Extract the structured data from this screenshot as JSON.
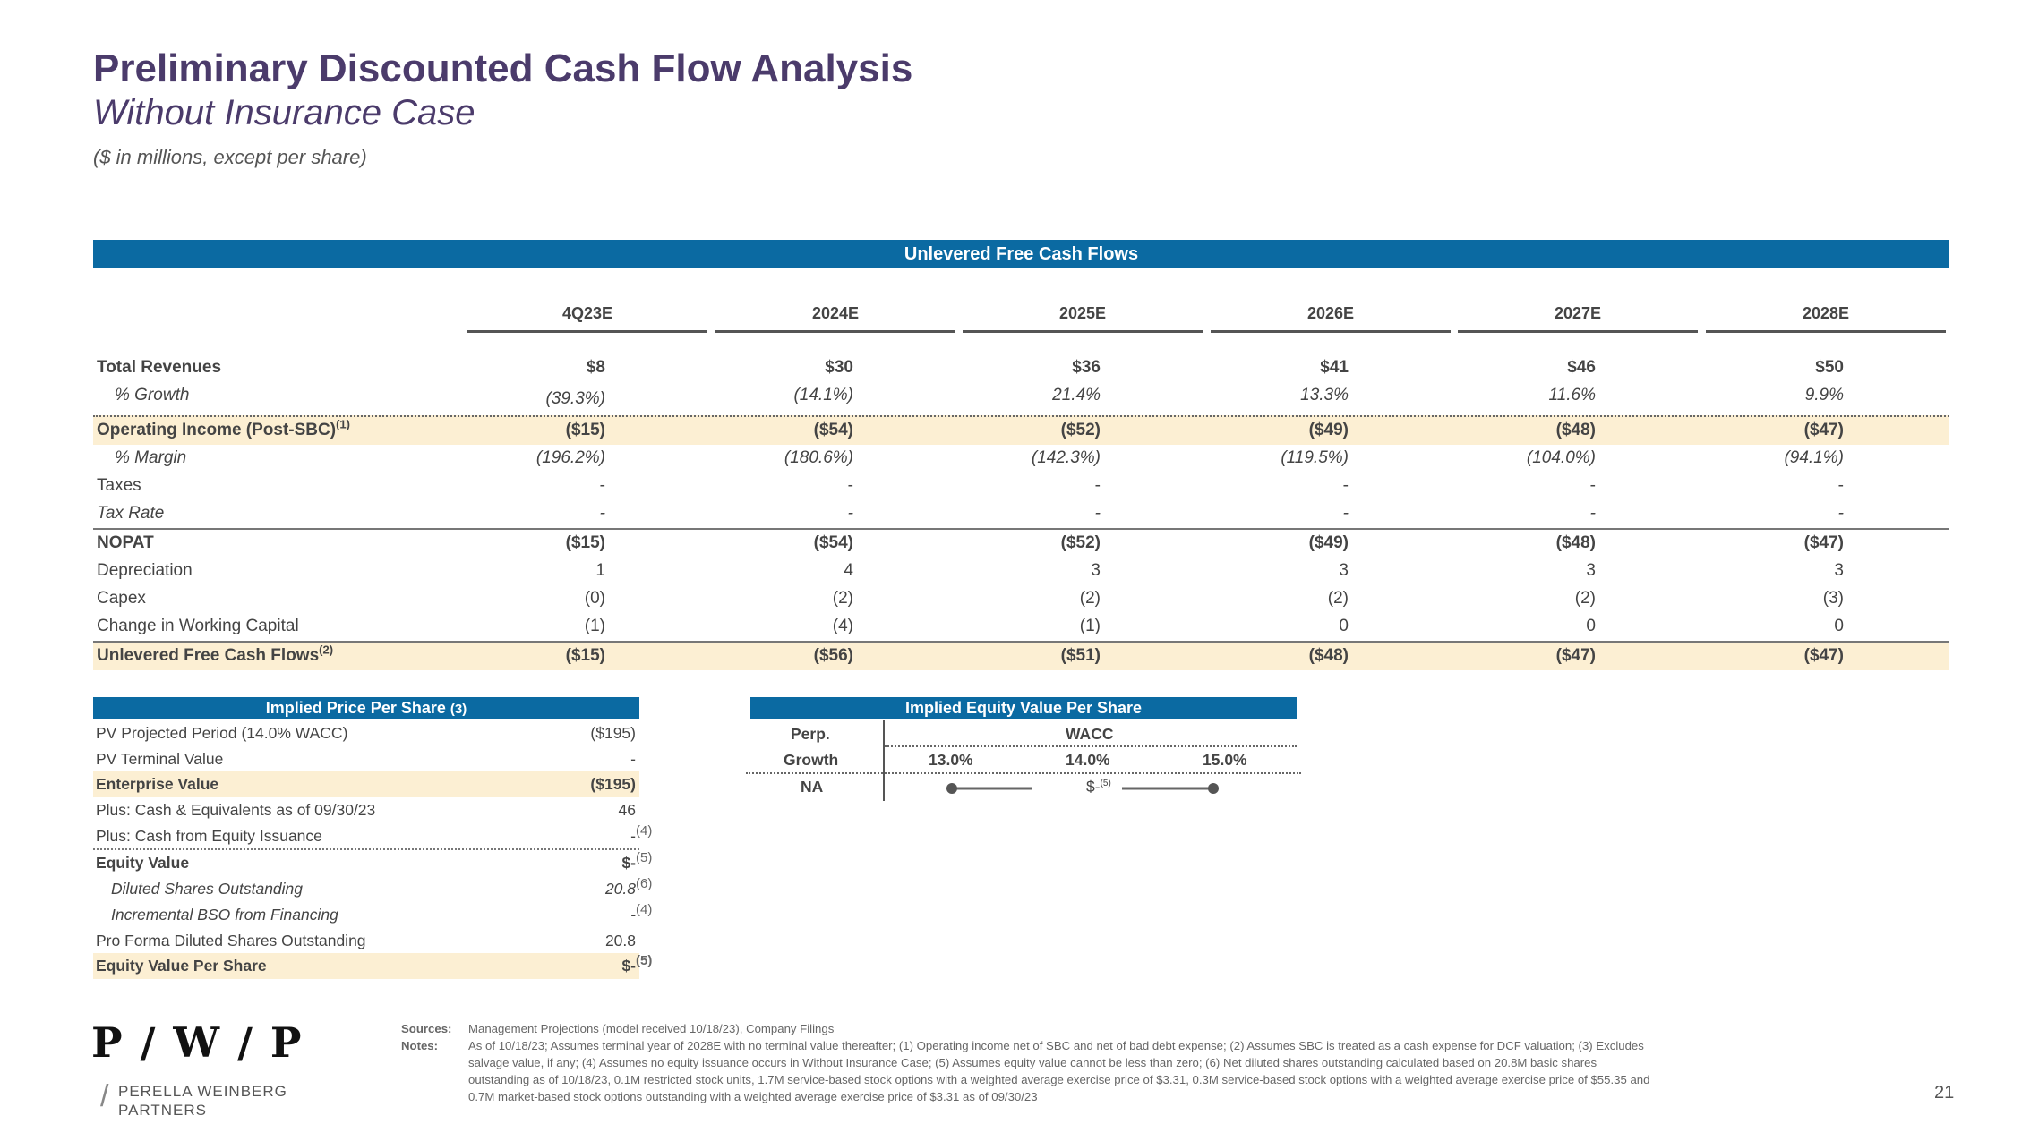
{
  "header": {
    "title": "Preliminary Discounted Cash Flow Analysis",
    "subtitle": "Without Insurance Case",
    "units": "($ in millions, except per share)"
  },
  "fcf": {
    "heading": "Unlevered Free Cash Flows",
    "years": [
      "4Q23E",
      "2024E",
      "2025E",
      "2026E",
      "2027E",
      "2028E"
    ],
    "rows": [
      {
        "label": "Total Revenues",
        "values": [
          "$8",
          "$30",
          "$36",
          "$41",
          "$46",
          "$50"
        ]
      },
      {
        "label": "% Growth",
        "values": [
          "(39.3%)",
          "(14.1%)",
          "21.4%",
          "13.3%",
          "11.6%",
          "9.9%"
        ]
      },
      {
        "label": "Operating Income (Post-SBC)",
        "sup": "(1)",
        "values": [
          "($15)",
          "($54)",
          "($52)",
          "($49)",
          "($48)",
          "($47)"
        ]
      },
      {
        "label": "% Margin",
        "values": [
          "(196.2%)",
          "(180.6%)",
          "(142.3%)",
          "(119.5%)",
          "(104.0%)",
          "(94.1%)"
        ]
      },
      {
        "label": "Taxes",
        "values": [
          "-",
          "-",
          "-",
          "-",
          "-",
          "-"
        ]
      },
      {
        "label": "Tax Rate",
        "values": [
          "-",
          "-",
          "-",
          "-",
          "-",
          "-"
        ]
      },
      {
        "label": "NOPAT",
        "values": [
          "($15)",
          "($54)",
          "($52)",
          "($49)",
          "($48)",
          "($47)"
        ]
      },
      {
        "label": "Depreciation",
        "values": [
          "1",
          "4",
          "3",
          "3",
          "3",
          "3"
        ]
      },
      {
        "label": "Capex",
        "values": [
          "(0)",
          "(2)",
          "(2)",
          "(2)",
          "(2)",
          "(3)"
        ]
      },
      {
        "label": "Change in Working Capital",
        "values": [
          "(1)",
          "(4)",
          "(1)",
          "0",
          "0",
          "0"
        ]
      },
      {
        "label": "Unlevered Free Cash Flows",
        "sup": "(2)",
        "values": [
          "($15)",
          "($56)",
          "($51)",
          "($48)",
          "($47)",
          "($47)"
        ]
      }
    ]
  },
  "ips": {
    "heading": "Implied Price Per Share",
    "heading_sup": "(3)",
    "rows": [
      {
        "label": "PV Projected Period (14.0% WACC)",
        "value": "($195)",
        "fn": ""
      },
      {
        "label": "PV Terminal Value",
        "value": "-",
        "fn": ""
      },
      {
        "label": "Enterprise Value",
        "value": "($195)",
        "fn": ""
      },
      {
        "label": "Plus: Cash & Equivalents as of 09/30/23",
        "value": "46",
        "fn": ""
      },
      {
        "label": "Plus: Cash from Equity Issuance",
        "value": "-",
        "fn": "(4)"
      },
      {
        "label": "Equity Value",
        "value": "$-",
        "fn": "(5)"
      },
      {
        "label": "Diluted Shares Outstanding",
        "value": "20.8",
        "fn": "(6)"
      },
      {
        "label": "Incremental BSO from Financing",
        "value": "-",
        "fn": "(4)"
      },
      {
        "label": "Pro Forma Diluted Shares Outstanding",
        "value": "20.8",
        "fn": ""
      },
      {
        "label": "Equity Value Per Share",
        "value": "$-",
        "fn": "(5)"
      }
    ]
  },
  "ievs": {
    "heading": "Implied Equity Value Per Share",
    "perp_label_1": "Perp.",
    "perp_label_2": "Growth",
    "wacc_label": "WACC",
    "wacc_values": [
      "13.0%",
      "14.0%",
      "15.0%"
    ],
    "row_label": "NA",
    "range_value": "$-",
    "range_sup": "(5)"
  },
  "footer": {
    "sources_key": "Sources:",
    "sources_text": "Management Projections (model received 10/18/23), Company Filings",
    "notes_key": "Notes:",
    "notes_text": "As of 10/18/23; Assumes terminal year of 2028E with no terminal value thereafter; (1) Operating income net of SBC and net of bad debt expense; (2) Assumes SBC is treated as a cash expense for DCF valuation; (3) Excludes salvage value, if any; (4) Assumes no equity issuance occurs in Without Insurance Case; (5) Assumes equity value cannot be less than zero; (6) Net diluted shares outstanding calculated based on 20.8M basic shares outstanding as of 10/18/23, 0.1M restricted stock units, 1.7M service-based stock options with a weighted average exercise price of $3.31, 0.3M service-based stock options with a weighted average exercise price of $55.35 and 0.7M market-based stock options outstanding with a weighted average exercise price of $3.31 as of 09/30/23",
    "logo_mark": "P / W / P",
    "logo_line1": "PERELLA WEINBERG",
    "logo_line2": "PARTNERS",
    "page_number": "21"
  },
  "colors": {
    "accent": "#0b6aa2",
    "title": "#4b3b6b",
    "highlight": "#fcefd3"
  }
}
